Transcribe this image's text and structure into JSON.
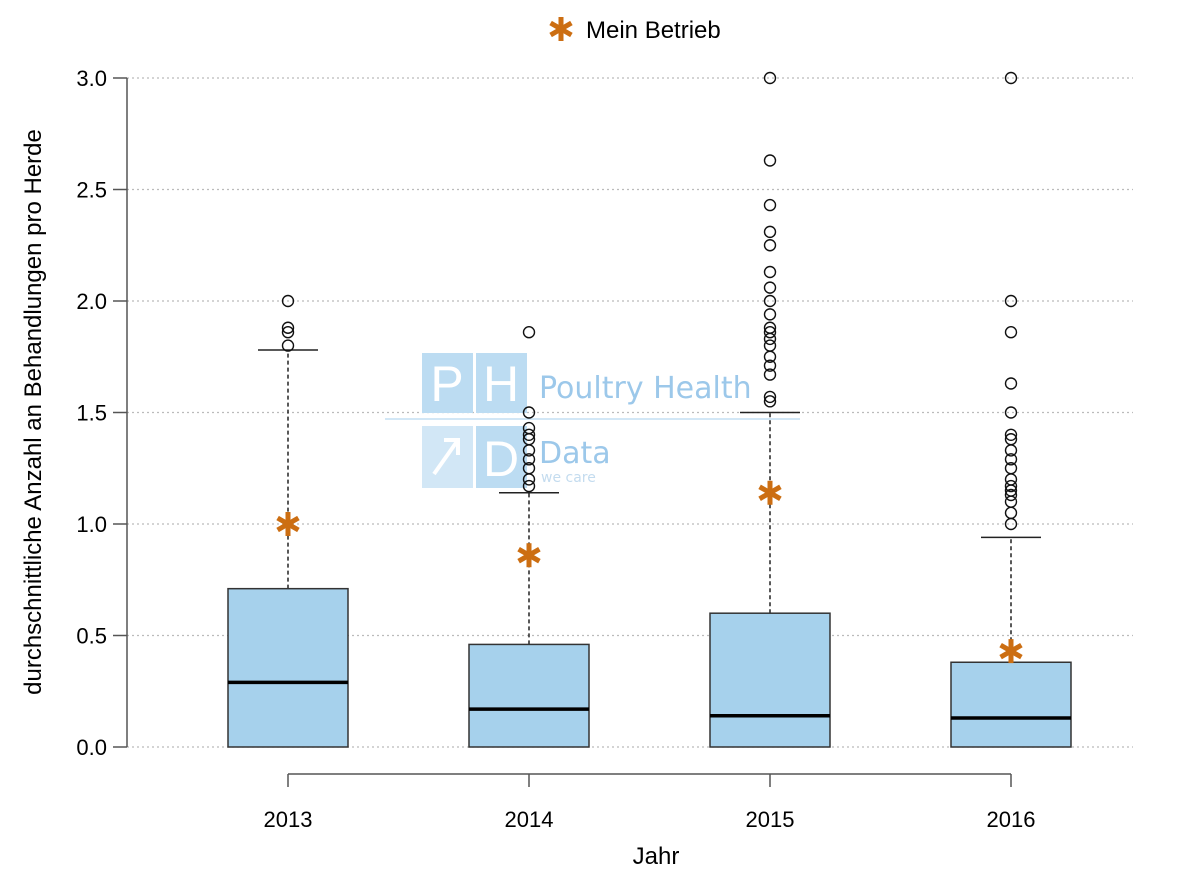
{
  "legend": {
    "label": "Mein Betrieb",
    "marker": "asterisk"
  },
  "watermark": {
    "letters": [
      "P",
      "H",
      "",
      "D"
    ],
    "line1": "Poultry Health",
    "line2": "Data",
    "tagline": "we care"
  },
  "colors": {
    "box_fill": "#a6d1ec",
    "box_stroke": "#333333",
    "median": "#000000",
    "marker": "#cc6e12",
    "grid": "#bbbbbb",
    "watermark": "#bcdcf2"
  },
  "chart_data": {
    "type": "boxplot",
    "title": "",
    "xlabel": "Jahr",
    "ylabel": "durchschnittliche Anzahl an Behandlungen pro Herde",
    "categories": [
      "2013",
      "2014",
      "2015",
      "2016"
    ],
    "ylim": [
      0,
      3.0
    ],
    "yticks": [
      "0.0",
      "0.5",
      "1.0",
      "1.5",
      "2.0",
      "2.5",
      "3.0"
    ],
    "grid": "horizontal dotted",
    "legend_position": "top-center",
    "boxes": [
      {
        "category": "2013",
        "min": 0.0,
        "q1": 0.0,
        "median": 0.29,
        "q3": 0.71,
        "whisker_high": 1.78,
        "outliers": [
          1.8,
          1.86,
          1.88,
          2.0
        ],
        "mein_betrieb": 1.0
      },
      {
        "category": "2014",
        "min": 0.0,
        "q1": 0.0,
        "median": 0.17,
        "q3": 0.46,
        "whisker_high": 1.14,
        "outliers": [
          1.17,
          1.2,
          1.25,
          1.29,
          1.33,
          1.38,
          1.4,
          1.43,
          1.5,
          1.86
        ],
        "mein_betrieb": 0.86
      },
      {
        "category": "2015",
        "min": 0.0,
        "q1": 0.0,
        "median": 0.14,
        "q3": 0.6,
        "whisker_high": 1.5,
        "outliers": [
          1.55,
          1.57,
          1.67,
          1.71,
          1.75,
          1.8,
          1.83,
          1.86,
          1.88,
          1.94,
          2.0,
          2.06,
          2.13,
          2.25,
          2.31,
          2.43,
          2.63,
          3.0
        ],
        "mein_betrieb": 1.14
      },
      {
        "category": "2016",
        "min": 0.0,
        "q1": 0.0,
        "median": 0.13,
        "q3": 0.38,
        "whisker_high": 0.94,
        "outliers": [
          1.0,
          1.05,
          1.1,
          1.13,
          1.15,
          1.17,
          1.2,
          1.25,
          1.29,
          1.33,
          1.38,
          1.4,
          1.5,
          1.63,
          1.86,
          2.0,
          3.0
        ],
        "mein_betrieb": 0.43
      }
    ]
  }
}
